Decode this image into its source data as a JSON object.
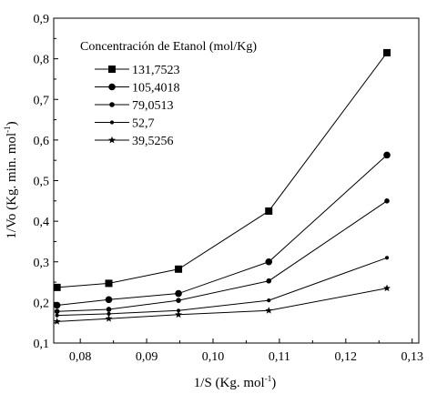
{
  "chart_data": {
    "type": "line",
    "title": "",
    "xlabel": "1/S (Kg. mol",
    "xlabel_sup": "-1",
    "xlabel_close": ")",
    "ylabel": "1/Vo (Kg. min. mol",
    "ylabel_sup": "-1",
    "ylabel_close": ")",
    "xlim": [
      0.076,
      0.131
    ],
    "ylim": [
      0.1,
      0.9
    ],
    "xticks": [
      0.08,
      0.09,
      0.1,
      0.11,
      0.12,
      0.13
    ],
    "xtick_labels": [
      "0,08",
      "0,09",
      "0,10",
      "0,11",
      "0,12",
      "0,13"
    ],
    "yticks": [
      0.1,
      0.2,
      0.3,
      0.4,
      0.5,
      0.6,
      0.7,
      0.8,
      0.9
    ],
    "ytick_labels": [
      "0,1",
      "0,2",
      "0,3",
      "0,4",
      "0,5",
      "0,6",
      "0,7",
      "0,8",
      "0,9"
    ],
    "grid": false,
    "legend_title": "Concentración de Etanol (mol/Kg)",
    "legend_position": "top-left",
    "x": [
      0.0765,
      0.0843,
      0.0948,
      0.1084,
      0.1262
    ],
    "series": [
      {
        "name": "131,7523",
        "marker": "square",
        "values": [
          0.237,
          0.247,
          0.282,
          0.425,
          0.815
        ]
      },
      {
        "name": "105,4018",
        "marker": "circle",
        "values": [
          0.193,
          0.207,
          0.222,
          0.3,
          0.563
        ]
      },
      {
        "name": "79,0513",
        "marker": "small-circle",
        "values": [
          0.178,
          0.183,
          0.205,
          0.253,
          0.45
        ]
      },
      {
        "name": "52,7",
        "marker": "dot",
        "values": [
          0.168,
          0.172,
          0.18,
          0.205,
          0.31
        ]
      },
      {
        "name": "39,5256",
        "marker": "star",
        "values": [
          0.153,
          0.16,
          0.17,
          0.18,
          0.235
        ]
      }
    ]
  }
}
